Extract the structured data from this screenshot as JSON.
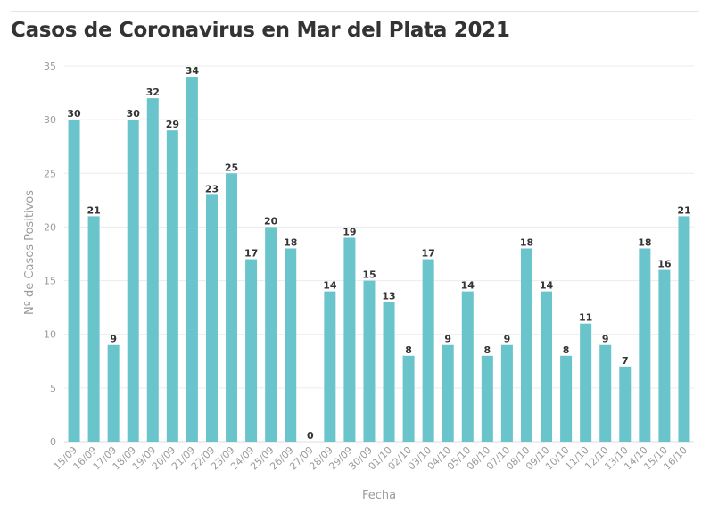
{
  "chart_data": {
    "type": "bar",
    "title": "Casos de Coronavirus en Mar del Plata 2021",
    "xlabel": "Fecha",
    "ylabel": "Nº de Casos Positivos",
    "ylim": [
      0,
      35
    ],
    "yticks": [
      0,
      5,
      10,
      15,
      20,
      25,
      30,
      35
    ],
    "grid": true,
    "bar_color": "#6ac4cc",
    "categories": [
      "15/09",
      "16/09",
      "17/09",
      "18/09",
      "19/09",
      "20/09",
      "21/09",
      "22/09",
      "23/09",
      "24/09",
      "25/09",
      "26/09",
      "27/09",
      "28/09",
      "29/09",
      "30/09",
      "01/10",
      "02/10",
      "03/10",
      "04/10",
      "05/10",
      "06/10",
      "07/10",
      "08/10",
      "09/10",
      "10/10",
      "11/10",
      "12/10",
      "13/10",
      "14/10",
      "15/10",
      "16/10"
    ],
    "values": [
      30,
      21,
      9,
      30,
      32,
      29,
      34,
      23,
      25,
      17,
      20,
      18,
      0,
      14,
      19,
      15,
      13,
      8,
      17,
      9,
      14,
      8,
      9,
      18,
      14,
      8,
      11,
      9,
      7,
      18,
      16,
      21
    ]
  }
}
